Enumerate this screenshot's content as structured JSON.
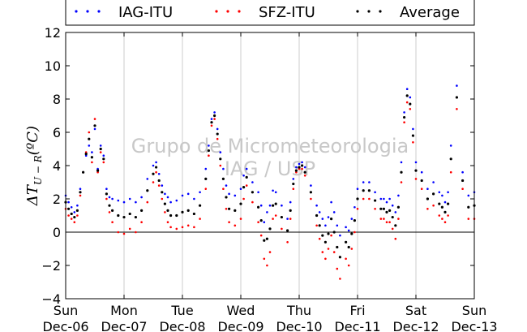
{
  "chart_data": {
    "type": "scatter",
    "title": "",
    "ylabel": "ΔT_{U-R}(ºC)",
    "ylabel_display": "ΔT",
    "ylabel_sub": "U − R",
    "ylabel_unit": "(ºC)",
    "ylim": [
      -4,
      12
    ],
    "xlim": [
      0,
      7
    ],
    "yticks": [
      -4,
      -2,
      0,
      2,
      4,
      6,
      8,
      10,
      12
    ],
    "yticks_labels": [
      "−4",
      "−2",
      "0",
      "2",
      "4",
      "6",
      "8",
      "10",
      "12"
    ],
    "xticks": [
      {
        "x": 0,
        "day": "Sun",
        "date": "Dec-06"
      },
      {
        "x": 1,
        "day": "Mon",
        "date": "Dec-07"
      },
      {
        "x": 2,
        "day": "Tue",
        "date": "Dec-08"
      },
      {
        "x": 3,
        "day": "Wed",
        "date": "Dec-09"
      },
      {
        "x": 4,
        "day": "Thu",
        "date": "Dec-10"
      },
      {
        "x": 5,
        "day": "Fri",
        "date": "Dec-11"
      },
      {
        "x": 6,
        "day": "Sat",
        "date": "Dec-12"
      },
      {
        "x": 7,
        "day": "Sun",
        "date": "Dec-13"
      }
    ],
    "grid": "vertical",
    "zero_line": true,
    "legend": {
      "placement": "top",
      "entries": [
        {
          "name": "IAG-ITU",
          "color": "#0000ff"
        },
        {
          "name": "SFZ-ITU",
          "color": "#ff0000"
        },
        {
          "name": "Average",
          "color": "#000000"
        }
      ]
    },
    "watermark": [
      "Grupo de Micrometeorologia",
      "IAG / USP"
    ],
    "series": [
      {
        "name": "IAG-ITU",
        "color": "#0000ff",
        "x": [
          0,
          0.05,
          0.1,
          0.15,
          0.2,
          0.25,
          0.3,
          0.35,
          0.4,
          0.45,
          0.5,
          0.55,
          0.6,
          0.65,
          0.7,
          0.75,
          0.8,
          0.9,
          1,
          1.1,
          1.2,
          1.3,
          1.4,
          1.5,
          1.55,
          1.6,
          1.65,
          1.7,
          1.75,
          1.8,
          1.9,
          2,
          2.1,
          2.2,
          2.3,
          2.4,
          2.45,
          2.5,
          2.55,
          2.6,
          2.65,
          2.7,
          2.75,
          2.8,
          2.9,
          3,
          3.05,
          3.1,
          3.2,
          3.3,
          3.35,
          3.4,
          3.45,
          3.5,
          3.55,
          3.6,
          3.7,
          3.8,
          3.85,
          3.9,
          3.95,
          4,
          4.05,
          4.1,
          4.2,
          4.3,
          4.35,
          4.4,
          4.45,
          4.5,
          4.55,
          4.6,
          4.65,
          4.7,
          4.8,
          4.85,
          4.9,
          4.95,
          5,
          5.1,
          5.2,
          5.3,
          5.4,
          5.45,
          5.5,
          5.55,
          5.6,
          5.65,
          5.7,
          5.75,
          5.8,
          5.85,
          5.9,
          5.95,
          6,
          6.1,
          6.2,
          6.3,
          6.4,
          6.45,
          6.5,
          6.55,
          6.6,
          6.7,
          6.8,
          6.9,
          7
        ],
        "y": [
          2.2,
          1.8,
          1.5,
          1.2,
          1.6,
          2.6,
          3.6,
          4.6,
          5.2,
          4.8,
          6.2,
          3.8,
          5.2,
          4.6,
          2.6,
          2.1,
          2.0,
          1.9,
          1.8,
          2.0,
          1.8,
          2.1,
          3.2,
          4.0,
          4.2,
          3.5,
          2.8,
          2.3,
          2.1,
          1.8,
          1.9,
          2.2,
          2.3,
          2.0,
          2.4,
          3.8,
          5.2,
          6.8,
          7.2,
          6.2,
          4.8,
          3.8,
          2.8,
          2.3,
          2.2,
          2.6,
          3.4,
          3.8,
          3.0,
          2.4,
          1.6,
          0.6,
          1.2,
          1.6,
          2.5,
          2.4,
          1.6,
          0.8,
          1.8,
          3.2,
          3.9,
          4.1,
          4.2,
          3.9,
          2.8,
          1.6,
          1.2,
          0.8,
          0.4,
          0.9,
          1.8,
          1.2,
          0.4,
          -0.2,
          0.3,
          0.1,
          0.8,
          1.5,
          2.6,
          3.0,
          3.0,
          2.4,
          2.0,
          2.0,
          1.8,
          2.0,
          1.6,
          1.2,
          2.2,
          4.2,
          7.2,
          8.6,
          8.1,
          6.2,
          4.2,
          3.6,
          2.6,
          3.0,
          2.4,
          2.2,
          1.8,
          2.4,
          5.2,
          8.8,
          3.6,
          2.2,
          2.4
        ]
      },
      {
        "name": "SFZ-ITU",
        "color": "#ff0000",
        "x": [
          0,
          0.05,
          0.1,
          0.15,
          0.2,
          0.25,
          0.3,
          0.35,
          0.4,
          0.45,
          0.5,
          0.55,
          0.6,
          0.65,
          0.7,
          0.75,
          0.8,
          0.9,
          1,
          1.1,
          1.2,
          1.3,
          1.4,
          1.5,
          1.55,
          1.6,
          1.65,
          1.7,
          1.75,
          1.8,
          1.9,
          2,
          2.1,
          2.2,
          2.3,
          2.4,
          2.45,
          2.5,
          2.55,
          2.6,
          2.65,
          2.7,
          2.75,
          2.8,
          2.9,
          3,
          3.05,
          3.1,
          3.2,
          3.3,
          3.35,
          3.4,
          3.45,
          3.5,
          3.55,
          3.6,
          3.7,
          3.8,
          3.85,
          3.9,
          3.95,
          4,
          4.05,
          4.1,
          4.2,
          4.3,
          4.35,
          4.4,
          4.45,
          4.5,
          4.55,
          4.6,
          4.65,
          4.7,
          4.8,
          4.85,
          4.9,
          4.95,
          5,
          5.1,
          5.2,
          5.3,
          5.4,
          5.45,
          5.5,
          5.55,
          5.6,
          5.65,
          5.7,
          5.75,
          5.8,
          5.85,
          5.9,
          5.95,
          6,
          6.1,
          6.2,
          6.3,
          6.4,
          6.45,
          6.5,
          6.55,
          6.6,
          6.7,
          6.8,
          6.9,
          7
        ],
        "y": [
          1.4,
          1.0,
          0.8,
          0.6,
          1.0,
          2.2,
          3.6,
          4.8,
          6.0,
          4.2,
          6.8,
          3.6,
          4.8,
          4.2,
          2.0,
          1.2,
          0.6,
          0.0,
          -0.1,
          0.2,
          0.0,
          0.6,
          1.8,
          3.0,
          3.6,
          2.8,
          2.0,
          1.2,
          0.6,
          0.3,
          0.2,
          0.3,
          0.4,
          0.3,
          0.8,
          2.6,
          4.6,
          6.4,
          6.8,
          5.6,
          4.0,
          2.6,
          1.4,
          0.6,
          0.4,
          0.8,
          2.0,
          2.8,
          1.8,
          0.6,
          -0.2,
          -1.6,
          -2.0,
          -1.2,
          0.8,
          1.0,
          0.2,
          -0.6,
          0.8,
          2.6,
          3.6,
          3.8,
          3.8,
          3.4,
          2.0,
          0.4,
          -0.4,
          -1.2,
          -1.6,
          -1.0,
          -0.2,
          -1.2,
          -2.2,
          -2.8,
          -1.6,
          -2.0,
          -1.0,
          0.0,
          1.4,
          2.0,
          2.0,
          1.4,
          0.8,
          0.8,
          0.6,
          0.6,
          0.2,
          -0.4,
          0.8,
          3.0,
          6.6,
          7.8,
          7.4,
          5.4,
          3.2,
          2.6,
          1.4,
          1.6,
          1.0,
          0.8,
          0.6,
          1.0,
          3.6,
          7.4,
          2.6,
          0.8,
          0.8
        ]
      },
      {
        "name": "Average",
        "color": "#000000",
        "x": [
          0,
          0.05,
          0.1,
          0.15,
          0.2,
          0.25,
          0.3,
          0.35,
          0.4,
          0.45,
          0.5,
          0.55,
          0.6,
          0.65,
          0.7,
          0.75,
          0.8,
          0.9,
          1,
          1.1,
          1.2,
          1.3,
          1.4,
          1.5,
          1.55,
          1.6,
          1.65,
          1.7,
          1.75,
          1.8,
          1.9,
          2,
          2.1,
          2.2,
          2.3,
          2.4,
          2.45,
          2.5,
          2.55,
          2.6,
          2.65,
          2.7,
          2.75,
          2.8,
          2.9,
          3,
          3.05,
          3.1,
          3.2,
          3.3,
          3.35,
          3.4,
          3.45,
          3.5,
          3.55,
          3.6,
          3.7,
          3.8,
          3.85,
          3.9,
          3.95,
          4,
          4.05,
          4.1,
          4.2,
          4.3,
          4.35,
          4.4,
          4.45,
          4.5,
          4.55,
          4.6,
          4.65,
          4.7,
          4.8,
          4.85,
          4.9,
          4.95,
          5,
          5.1,
          5.2,
          5.3,
          5.4,
          5.45,
          5.5,
          5.55,
          5.6,
          5.65,
          5.7,
          5.75,
          5.8,
          5.85,
          5.9,
          5.95,
          6,
          6.1,
          6.2,
          6.3,
          6.4,
          6.45,
          6.5,
          6.55,
          6.6,
          6.7,
          6.8,
          6.9,
          7
        ],
        "y": [
          1.8,
          1.4,
          1.1,
          0.9,
          1.3,
          2.4,
          3.6,
          4.7,
          5.6,
          4.5,
          6.4,
          3.7,
          5.0,
          4.4,
          2.3,
          1.6,
          1.3,
          1.0,
          0.9,
          1.1,
          0.9,
          1.3,
          2.5,
          3.5,
          3.9,
          3.1,
          2.4,
          1.7,
          1.3,
          1.0,
          1.0,
          1.2,
          1.3,
          1.1,
          1.6,
          3.2,
          4.9,
          6.6,
          7.0,
          5.9,
          4.4,
          3.2,
          2.1,
          1.4,
          1.3,
          1.7,
          2.7,
          3.3,
          2.4,
          1.5,
          0.7,
          -0.5,
          -0.4,
          0.2,
          1.6,
          1.7,
          0.9,
          0.1,
          1.3,
          2.9,
          3.7,
          3.9,
          4.0,
          3.6,
          2.4,
          1.0,
          0.4,
          -0.2,
          -0.6,
          -0.1,
          0.8,
          0.0,
          -0.9,
          -1.5,
          -0.6,
          -0.9,
          -0.1,
          0.7,
          2.0,
          2.5,
          2.5,
          1.9,
          1.4,
          1.4,
          1.2,
          1.3,
          0.9,
          0.4,
          1.5,
          3.6,
          6.9,
          8.2,
          7.7,
          5.8,
          3.7,
          3.1,
          2.0,
          2.3,
          1.7,
          1.5,
          1.2,
          1.7,
          4.4,
          8.1,
          3.1,
          1.5,
          1.6
        ]
      }
    ]
  }
}
